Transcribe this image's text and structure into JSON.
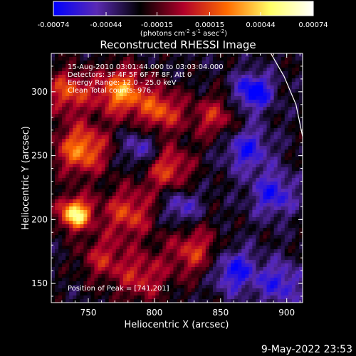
{
  "chart_data": {
    "type": "heatmap",
    "title": "Reconstructed RHESSI Image",
    "xlabel": "Heliocentric X (arcsec)",
    "ylabel": "Heliocentric Y (arcsec)",
    "xlim": [
      722,
      912
    ],
    "ylim": [
      135,
      330
    ],
    "x_ticks": [
      750,
      800,
      850,
      900
    ],
    "y_ticks": [
      150,
      200,
      250,
      300
    ],
    "colorbar": {
      "range": [
        -0.00074,
        0.00074
      ],
      "tick_values": [
        -0.00074,
        -0.00044,
        -0.00015,
        0.00015,
        0.00044,
        0.00074
      ],
      "tick_labels": [
        "-0.00074",
        "-0.00044",
        "-0.00015",
        "0.00015",
        "0.00044",
        "0.00074"
      ],
      "unit_label": "(photons cm",
      "unit_sup1": "-2",
      "unit_mid": " s",
      "unit_sup2": "-1",
      "unit_end": " asec",
      "unit_sup3": "-2",
      "unit_close": ")",
      "colors": [
        "#0000ff",
        "#5a2ab4",
        "#000000",
        "#b0002a",
        "#ff6a00",
        "#ffff66",
        "#ffffff"
      ]
    },
    "info_lines": [
      "15-Aug-2010 03:01:44.000 to 03:03:04.000",
      "Detectors: 3F 4F 5F 6F 7F 8F, Att 0",
      "Energy Range: 12.0 - 25.0 keV",
      "Clean    Total counts: 976."
    ],
    "peak_label": "Position of Peak = [741,201]",
    "peak": [
      741,
      201
    ],
    "limb_curve": [
      [
        888,
        330
      ],
      [
        898,
        312
      ],
      [
        907,
        290
      ],
      [
        912,
        265
      ]
    ],
    "hot_spots": [
      {
        "x": 740,
        "y": 205,
        "amp": 1.0,
        "r": 9
      },
      {
        "x": 745,
        "y": 255,
        "amp": 0.75,
        "r": 14
      },
      {
        "x": 775,
        "y": 300,
        "amp": 0.8,
        "r": 13
      },
      {
        "x": 735,
        "y": 300,
        "amp": 0.6,
        "r": 12
      },
      {
        "x": 805,
        "y": 285,
        "amp": 0.6,
        "r": 12
      },
      {
        "x": 810,
        "y": 240,
        "amp": 0.55,
        "r": 13
      },
      {
        "x": 780,
        "y": 205,
        "amp": 0.55,
        "r": 14
      },
      {
        "x": 830,
        "y": 175,
        "amp": 0.5,
        "r": 14
      },
      {
        "x": 790,
        "y": 155,
        "amp": 0.45,
        "r": 14
      },
      {
        "x": 845,
        "y": 280,
        "amp": 0.45,
        "r": 12
      },
      {
        "x": 760,
        "y": 170,
        "amp": 0.4,
        "r": 12
      }
    ],
    "cold_spots": [
      {
        "x": 875,
        "y": 300,
        "amp": -0.7,
        "r": 10
      },
      {
        "x": 870,
        "y": 255,
        "amp": -0.5,
        "r": 12
      },
      {
        "x": 890,
        "y": 220,
        "amp": -0.5,
        "r": 12
      },
      {
        "x": 860,
        "y": 160,
        "amp": -0.55,
        "r": 12
      },
      {
        "x": 895,
        "y": 150,
        "amp": -0.45,
        "r": 12
      },
      {
        "x": 790,
        "y": 255,
        "amp": -0.4,
        "r": 10
      },
      {
        "x": 820,
        "y": 210,
        "amp": -0.4,
        "r": 10
      }
    ]
  },
  "footer": {
    "timestamp": "9-May-2022 23:53"
  }
}
